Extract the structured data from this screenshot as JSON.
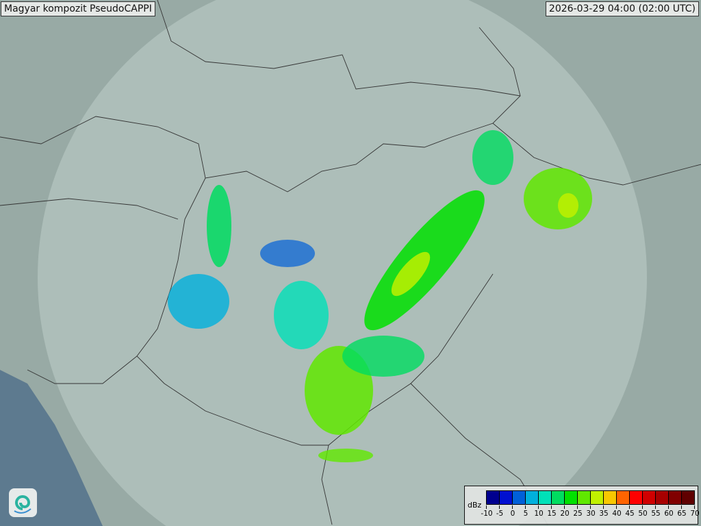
{
  "title": "Magyar kompozit  PseudoCAPPI",
  "timestamp": "2026-03-29 04:00 (02:00 UTC)",
  "legend": {
    "unit": "dBz",
    "ticks": [
      "-10",
      "-5",
      "0",
      "5",
      "10",
      "15",
      "20",
      "25",
      "30",
      "35",
      "40",
      "45",
      "50",
      "55",
      "60",
      "65",
      "70"
    ],
    "colors": [
      "#00008f",
      "#0010d0",
      "#0060d8",
      "#00b0dc",
      "#00e0b8",
      "#00dc60",
      "#00e000",
      "#60e800",
      "#c0f000",
      "#f8c800",
      "#ff6400",
      "#ff0000",
      "#d00000",
      "#a80000",
      "#800000",
      "#600000"
    ]
  },
  "map": {
    "land_color": "#9aaba6",
    "sea_color": "#5d7a8f",
    "coverage_color": "#c8d6d2",
    "logo_icon": "swirl-logo-icon"
  }
}
